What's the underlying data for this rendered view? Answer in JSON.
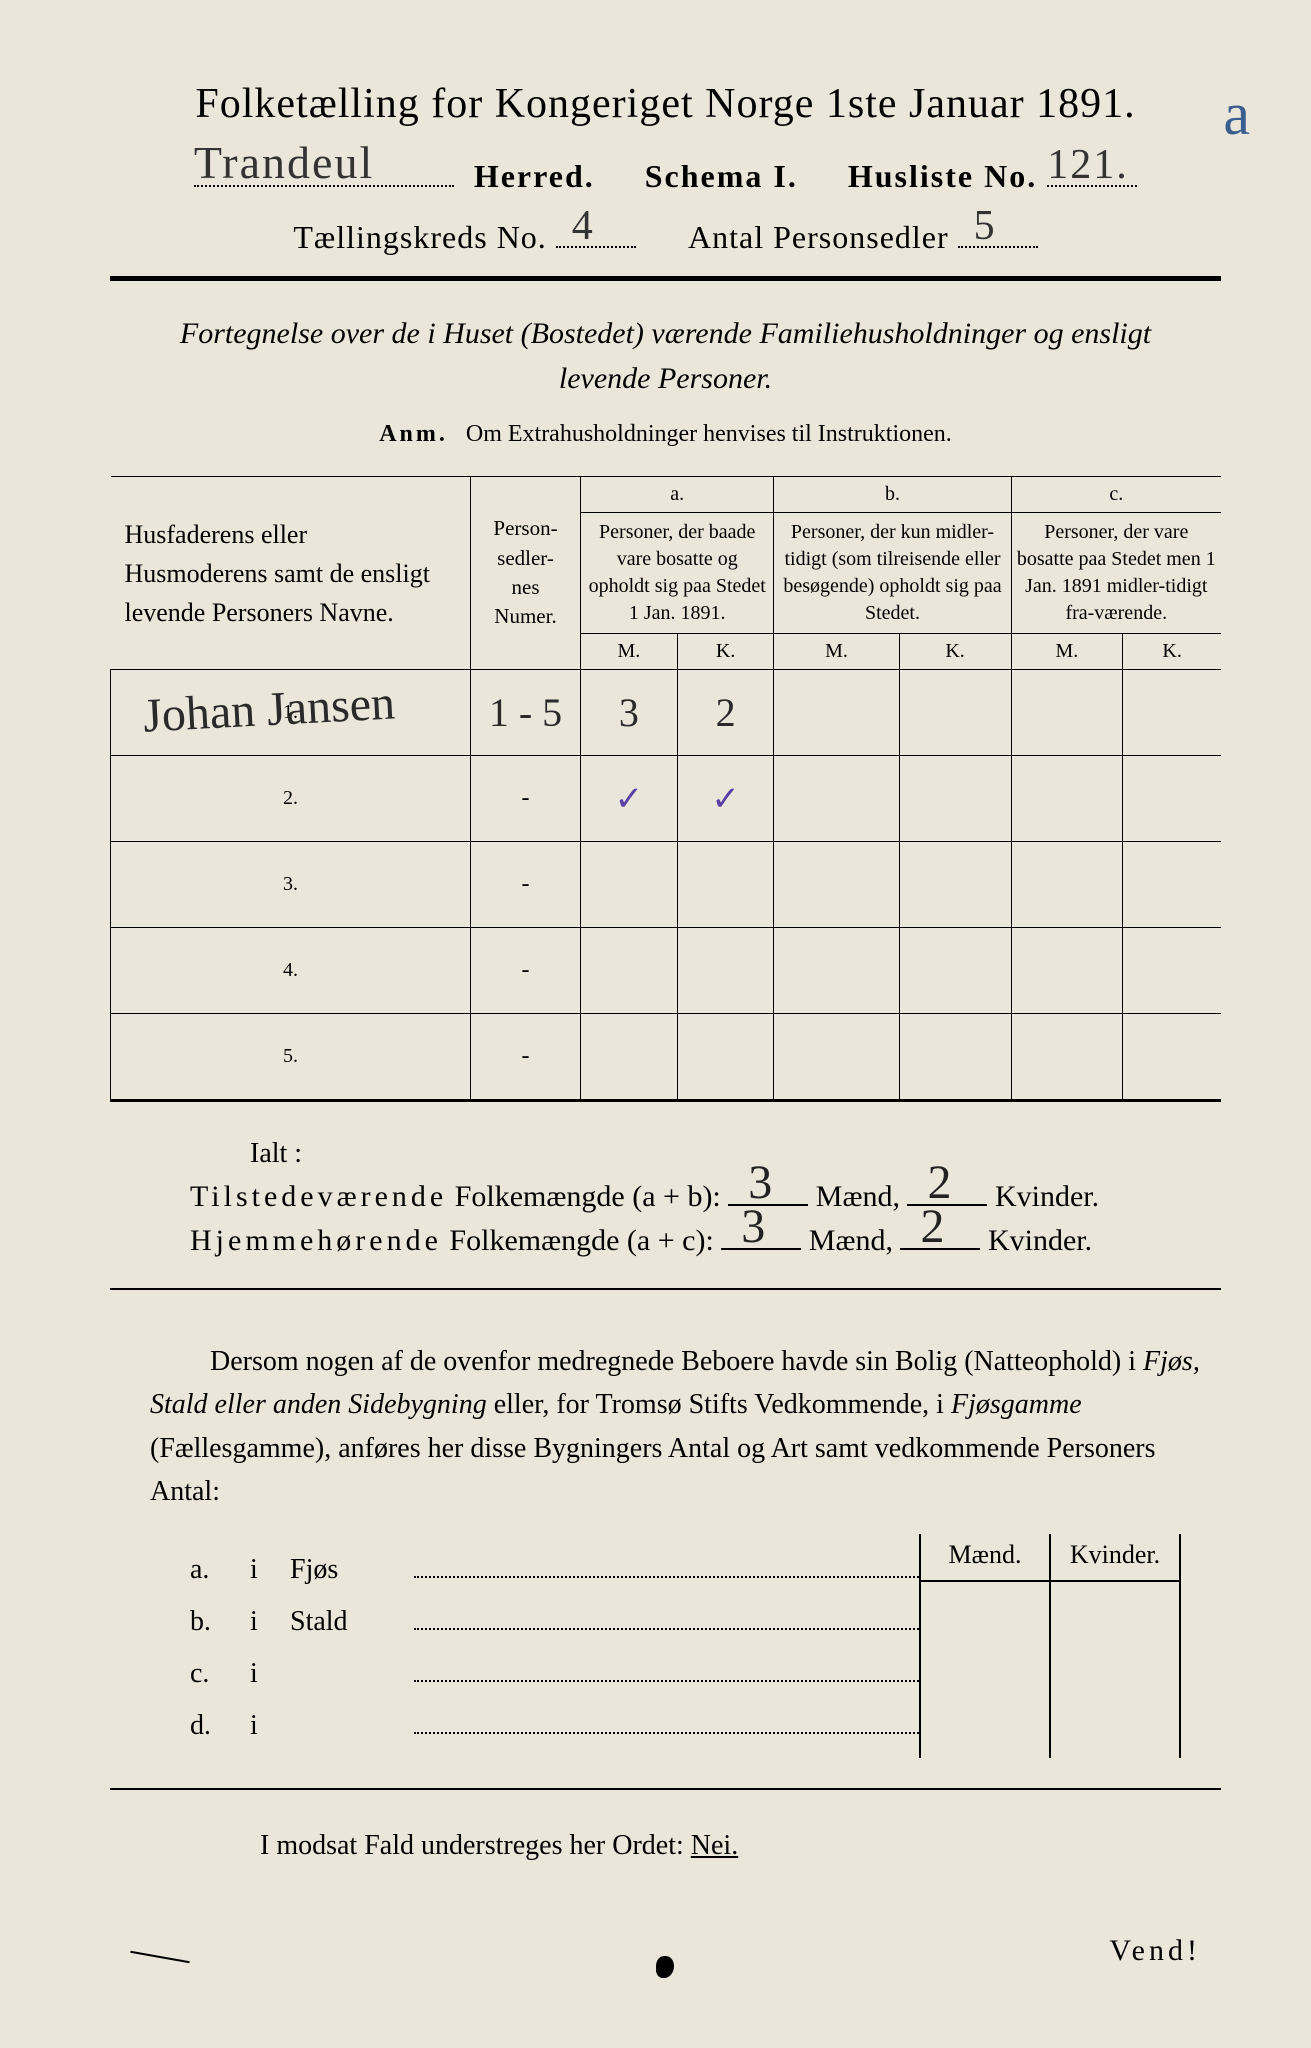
{
  "header": {
    "title": "Folketælling for Kongeriget Norge 1ste Januar 1891.",
    "annotation_letter": "a",
    "herred_label": "Herred.",
    "herred_value": "Trandeul",
    "schema_label": "Schema I.",
    "husliste_label": "Husliste No.",
    "husliste_value": "121.",
    "kreds_label": "Tællingskreds No.",
    "kreds_value": "4",
    "antal_label": "Antal Personsedler",
    "antal_value": "5"
  },
  "subtitle": "Fortegnelse over de i Huset (Bostedet) værende Familiehusholdninger og ensligt levende Personer.",
  "anm_label": "Anm.",
  "anm_text": "Om Extrahusholdninger henvises til Instruktionen.",
  "columns": {
    "names": "Husfaderens eller Husmoderens samt de ensligt levende Personers Navne.",
    "numer": "Person-\nsedler-\nnes\nNumer.",
    "a_label": "a.",
    "a_desc": "Personer, der baade vare bosatte og opholdt sig paa Stedet 1 Jan. 1891.",
    "b_label": "b.",
    "b_desc": "Personer, der kun midler-tidigt (som tilreisende eller besøgende) opholdt sig paa Stedet.",
    "c_label": "c.",
    "c_desc": "Personer, der vare bosatte paa Stedet men 1 Jan. 1891 midler-tidigt fra-værende.",
    "m": "M.",
    "k": "K."
  },
  "rows": [
    {
      "n": "1.",
      "name": "Johan Jansen",
      "numer": "1 - 5",
      "a_m": "3",
      "a_k": "2",
      "b_m": "",
      "b_k": "",
      "c_m": "",
      "c_k": ""
    },
    {
      "n": "2.",
      "name": "",
      "numer": "-",
      "a_m": "✓",
      "a_k": "✓",
      "b_m": "",
      "b_k": "",
      "c_m": "",
      "c_k": "",
      "tick": true
    },
    {
      "n": "3.",
      "name": "",
      "numer": "-",
      "a_m": "",
      "a_k": "",
      "b_m": "",
      "b_k": "",
      "c_m": "",
      "c_k": ""
    },
    {
      "n": "4.",
      "name": "",
      "numer": "-",
      "a_m": "",
      "a_k": "",
      "b_m": "",
      "b_k": "",
      "c_m": "",
      "c_k": ""
    },
    {
      "n": "5.",
      "name": "",
      "numer": "-",
      "a_m": "",
      "a_k": "",
      "b_m": "",
      "b_k": "",
      "c_m": "",
      "c_k": ""
    }
  ],
  "totals": {
    "ialt": "Ialt :",
    "line1_a": "Tilstedeværende",
    "line1_b": "Folkemængde (a + b):",
    "line2_a": "Hjemmehørende",
    "line2_b": "Folkemængde (a + c):",
    "maend": "Mænd,",
    "kvinder": "Kvinder.",
    "v1_m": "3",
    "v1_k": "2",
    "v2_m": "3",
    "v2_k": "2"
  },
  "para": "Dersom nogen af de ovenfor medregnede Beboere havde sin Bolig (Natteophold) i Fjøs, Stald eller anden Sidebygning eller, for Tromsø Stifts Vedkommende, i Fjøsgamme (Fællesgamme), anføres her disse Bygningers Antal og Art samt vedkommende Personers Antal:",
  "abcd": {
    "a": "a.",
    "b": "b.",
    "c": "c.",
    "d": "d.",
    "i": "i",
    "fjos": "Fjøs",
    "stald": "Stald",
    "maend": "Mænd.",
    "kvinder": "Kvinder."
  },
  "modsat": "I modsat Fald understreges her Ordet:",
  "nei": "Nei.",
  "vend": "Vend!"
}
